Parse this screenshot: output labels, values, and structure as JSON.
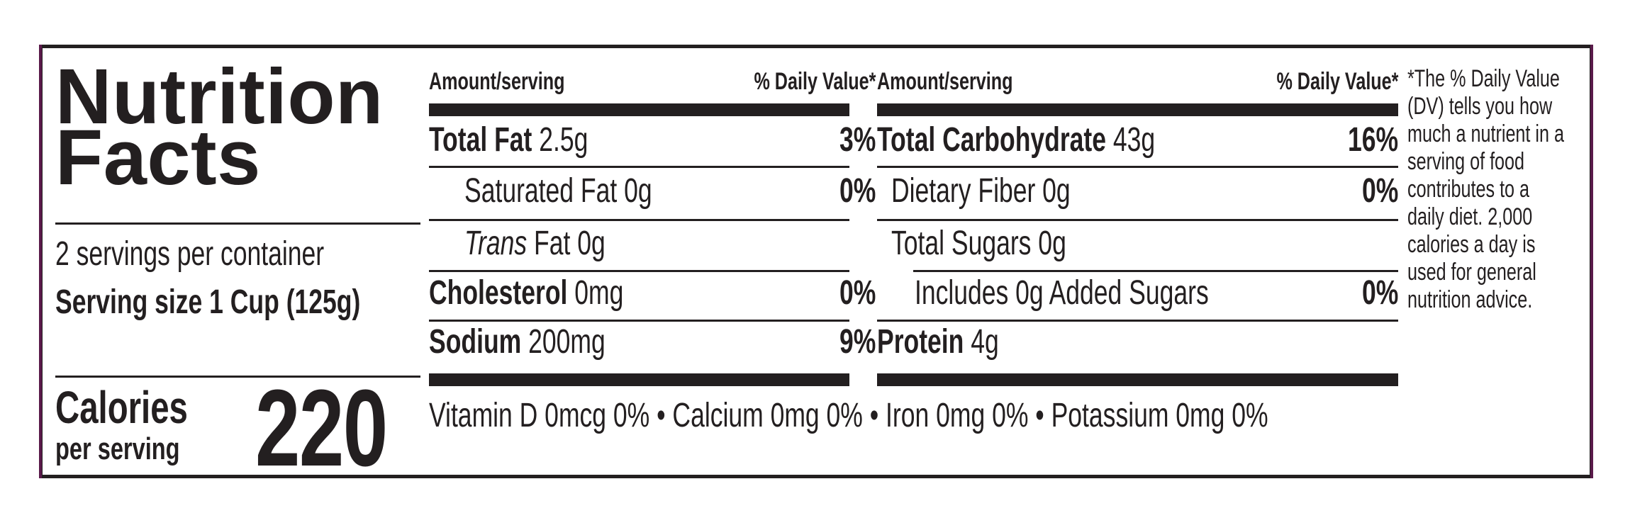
{
  "label": {
    "title_line1": "Nutrition",
    "title_line2": "Facts",
    "servings_per_container": "2 servings per container",
    "serving_size": "Serving size 1 Cup (125g)",
    "calories_label": "Calories",
    "calories_sub": "per serving",
    "calories_value": "220"
  },
  "left_table": {
    "header_amount": "Amount/serving",
    "header_dv": "% Daily Value*",
    "rows": [
      {
        "name": "Total Fat",
        "amount": " 2.5g",
        "dv": "3%"
      },
      {
        "name": "Saturated Fat 0g",
        "amount": "",
        "dv": "0%"
      },
      {
        "name": "Trans",
        "amount": " Fat 0g",
        "dv": ""
      },
      {
        "name": "Cholesterol",
        "amount": " 0mg",
        "dv": "0%"
      },
      {
        "name": "Sodium",
        "amount": " 200mg",
        "dv": "9%"
      }
    ]
  },
  "right_table": {
    "header_amount": "Amount/serving",
    "header_dv": "% Daily Value*",
    "rows": [
      {
        "name": "Total Carbohydrate",
        "amount": " 43g",
        "dv": "16%"
      },
      {
        "name": "Dietary Fiber 0g",
        "amount": "",
        "dv": "0%"
      },
      {
        "name": "Total Sugars 0g",
        "amount": "",
        "dv": ""
      },
      {
        "name": "Includes 0g Added Sugars",
        "amount": "",
        "dv": "0%"
      },
      {
        "name": "Protein",
        "amount": " 4g",
        "dv": ""
      }
    ]
  },
  "micronutrients": "Vitamin D 0mcg 0% • Calcium 0mg 0% • Iron 0mg 0% • Potassium 0mg 0%",
  "footnote": "*The % Daily Value (DV) tells you how much a nutrient in a serving of food contributes to a daily diet. 2,000 calories a day is used for general nutrition advice.",
  "colors": {
    "ink": "#231f20",
    "accent_edge": "#5a1a4a",
    "background": "#ffffff"
  }
}
